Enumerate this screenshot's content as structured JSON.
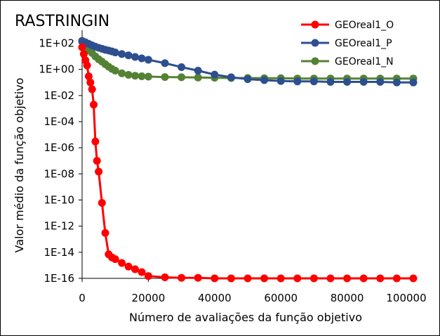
{
  "chart_data": {
    "type": "line",
    "title": "RASTRINGIN",
    "xlabel": "Número de avaliações da função objetivo",
    "ylabel": "Valor médio da função objetivo",
    "xlim": [
      0,
      100000
    ],
    "ylim_log10": [
      -16,
      3
    ],
    "y_scale": "log",
    "x_ticks": [
      0,
      20000,
      40000,
      60000,
      80000,
      100000
    ],
    "x_tick_labels": [
      "0",
      "20000",
      "40000",
      "60000",
      "80000",
      "100000"
    ],
    "y_ticks": [
      100,
      1,
      0.01,
      0.0001,
      1e-06,
      1e-08,
      1e-10,
      1e-12,
      1e-14,
      1e-16
    ],
    "y_tick_labels": [
      "1E+02",
      "1E+00",
      "1E-02",
      "1E-04",
      "1E-06",
      "1E-08",
      "1E-10",
      "1E-12",
      "1E-14",
      "1E-16"
    ],
    "grid": false,
    "legend_position": "top-right",
    "series": [
      {
        "name": "GEOreal1_O",
        "color": "#ff0000",
        "x": [
          0,
          500,
          1000,
          1500,
          2000,
          2500,
          3000,
          3500,
          4000,
          4500,
          5000,
          6000,
          7000,
          8000,
          9000,
          10000,
          12000,
          14000,
          16000,
          18000,
          20000,
          25000,
          30000,
          35000,
          40000,
          45000,
          50000,
          55000,
          60000,
          65000,
          70000,
          75000,
          80000,
          85000,
          90000,
          95000,
          100000
        ],
        "y": [
          50,
          15,
          5,
          2,
          0.3,
          0.1,
          0.03,
          0.002,
          3e-06,
          1e-07,
          1.5e-08,
          6e-11,
          3e-13,
          7e-15,
          4e-15,
          3e-15,
          1.5e-15,
          8e-16,
          5e-16,
          3e-16,
          1.5e-16,
          1.2e-16,
          1.1e-16,
          1.1e-16,
          1e-16,
          1e-16,
          1e-16,
          1e-16,
          1e-16,
          1e-16,
          1e-16,
          1e-16,
          1e-16,
          1e-16,
          1e-16,
          1e-16,
          1e-16
        ]
      },
      {
        "name": "GEOreal1_P",
        "color": "#2e4f8f",
        "x": [
          0,
          1000,
          2000,
          3000,
          4000,
          5000,
          6000,
          7000,
          8000,
          9000,
          10000,
          12000,
          14000,
          16000,
          18000,
          20000,
          25000,
          30000,
          35000,
          40000,
          45000,
          50000,
          55000,
          60000,
          65000,
          70000,
          75000,
          80000,
          85000,
          90000,
          95000,
          100000
        ],
        "y": [
          150,
          120,
          90,
          70,
          55,
          45,
          38,
          32,
          28,
          24,
          20,
          15,
          12,
          9,
          7,
          5.5,
          3,
          1.5,
          0.8,
          0.4,
          0.25,
          0.18,
          0.15,
          0.13,
          0.12,
          0.12,
          0.11,
          0.11,
          0.11,
          0.11,
          0.1,
          0.1
        ]
      },
      {
        "name": "GEOreal1_N",
        "color": "#548235",
        "x": [
          0,
          500,
          1000,
          1500,
          2000,
          2500,
          3000,
          4000,
          5000,
          6000,
          7000,
          8000,
          9000,
          10000,
          12000,
          14000,
          16000,
          18000,
          20000,
          25000,
          30000,
          35000,
          40000,
          45000,
          50000,
          55000,
          60000,
          65000,
          70000,
          75000,
          80000,
          85000,
          90000,
          95000,
          100000
        ],
        "y": [
          150,
          110,
          80,
          55,
          35,
          25,
          18,
          10,
          6,
          4,
          2.5,
          1.6,
          1.1,
          0.8,
          0.5,
          0.38,
          0.33,
          0.3,
          0.28,
          0.26,
          0.25,
          0.24,
          0.23,
          0.22,
          0.22,
          0.21,
          0.21,
          0.2,
          0.2,
          0.2,
          0.2,
          0.2,
          0.2,
          0.2,
          0.2
        ]
      }
    ]
  }
}
